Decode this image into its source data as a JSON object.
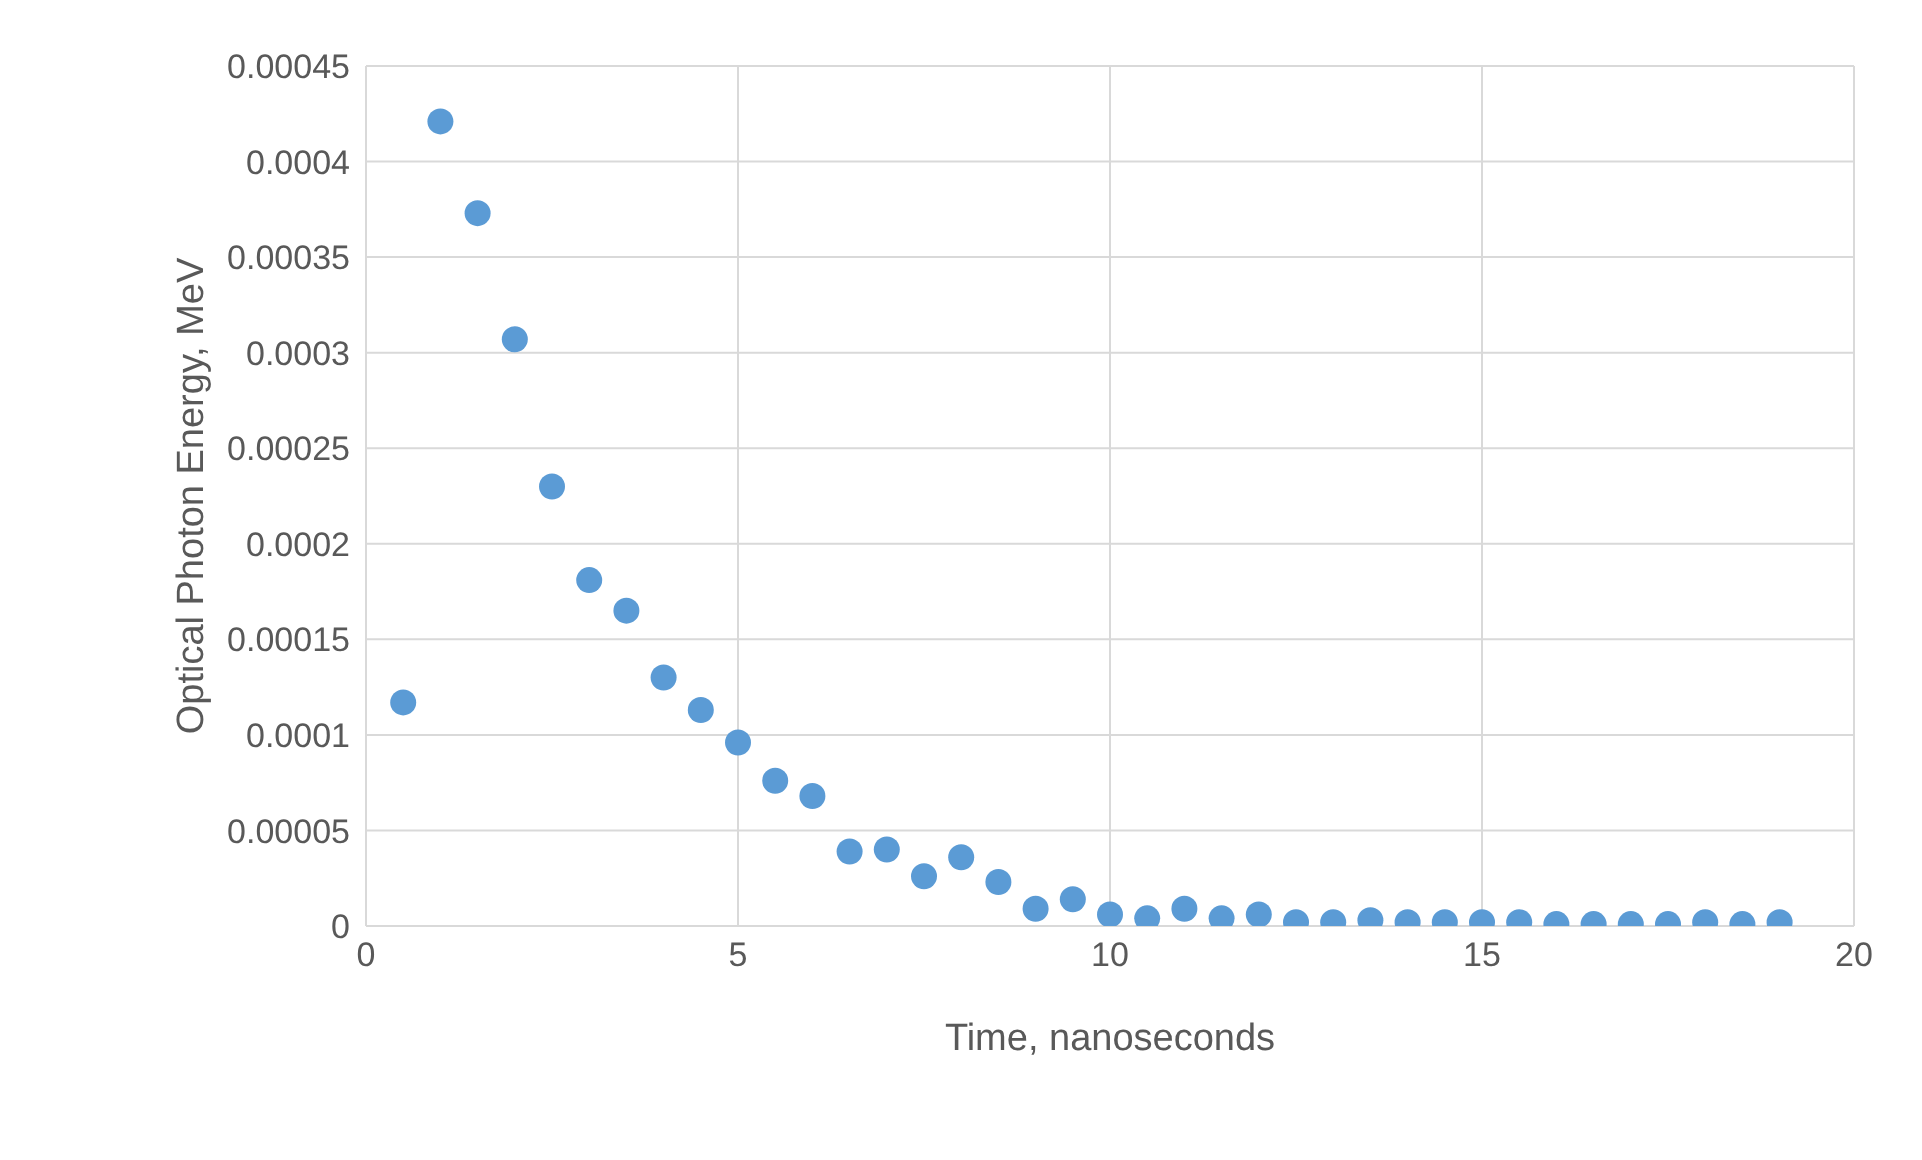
{
  "chart_data": {
    "type": "scatter",
    "xlabel": "Time, nanoseconds",
    "ylabel": "Optical Photon Energy, MeV",
    "x": [
      0.5,
      1,
      1.5,
      2,
      2.5,
      3,
      3.5,
      4,
      4.5,
      5,
      5.5,
      6,
      6.5,
      7,
      7.5,
      8,
      8.5,
      9,
      9.5,
      10,
      10.5,
      11,
      11.5,
      12,
      12.5,
      13,
      13.5,
      14,
      14.5,
      15,
      15.5,
      16,
      16.5,
      17,
      17.5,
      18,
      18.5,
      19
    ],
    "values": [
      0.000117,
      0.000421,
      0.000373,
      0.000307,
      0.00023,
      0.000181,
      0.000165,
      0.00013,
      0.000113,
      9.6e-05,
      7.6e-05,
      6.8e-05,
      3.9e-05,
      4e-05,
      2.6e-05,
      3.6e-05,
      2.3e-05,
      9e-06,
      1.4e-05,
      6e-06,
      4e-06,
      9e-06,
      4e-06,
      6e-06,
      2e-06,
      2e-06,
      3e-06,
      2e-06,
      2e-06,
      2e-06,
      2e-06,
      1e-06,
      1e-06,
      1e-06,
      1e-06,
      2e-06,
      1e-06,
      2e-06
    ],
    "color": "#5b9bd5",
    "marker": "circle",
    "grid": true,
    "legend": false,
    "xlim": [
      0,
      20
    ],
    "xticks": [
      0,
      5,
      10,
      15,
      20
    ],
    "ylim": [
      0,
      0.00045
    ],
    "yticks": [
      0,
      {
        "value": 5e-05,
        "label": "0.00005"
      },
      0.0001,
      0.00015,
      0.0002,
      0.00025,
      0.0003,
      0.00035,
      0.0004,
      0.00045
    ]
  }
}
